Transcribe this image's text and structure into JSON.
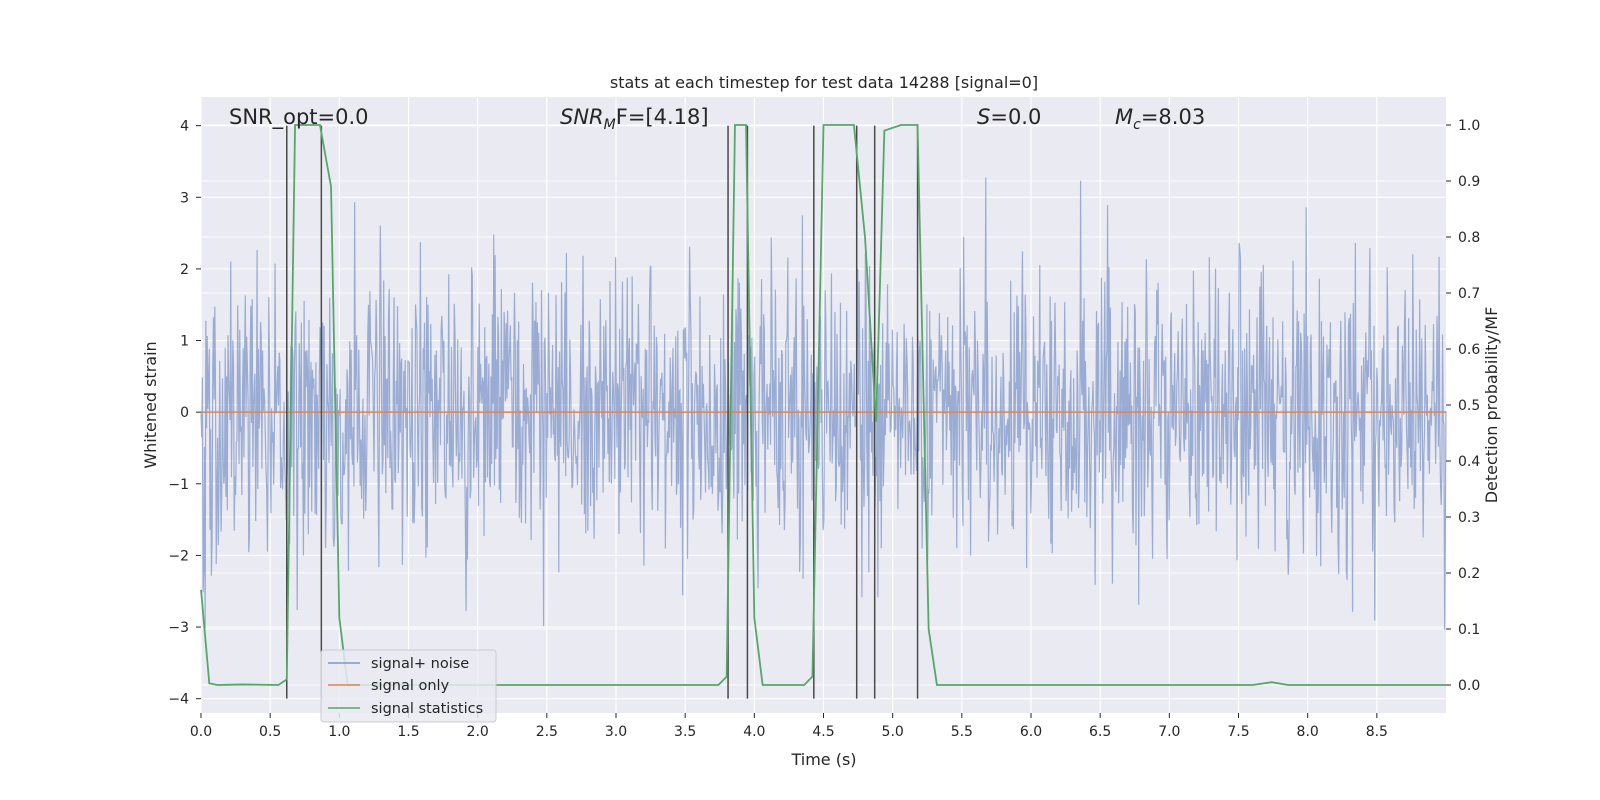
{
  "chart_data": {
    "type": "line",
    "title": "stats at each timestep for test data 14288 [signal=0]",
    "xlabel": "Time (s)",
    "ylabel": "Whitened strain",
    "y2label": "Detection probability/MF",
    "xlim": [
      0,
      9
    ],
    "ylim": [
      -4.2,
      4.4
    ],
    "y2lim": [
      -0.05,
      1.05
    ],
    "xticks": [
      0.0,
      0.5,
      1.0,
      1.5,
      2.0,
      2.5,
      3.0,
      3.5,
      4.0,
      4.5,
      5.0,
      5.5,
      6.0,
      6.5,
      7.0,
      7.5,
      8.0,
      8.5
    ],
    "yticks": [
      -4,
      -3,
      -2,
      -1,
      0,
      1,
      2,
      3,
      4
    ],
    "y2ticks": [
      0.0,
      0.1,
      0.2,
      0.3,
      0.4,
      0.5,
      0.6,
      0.7,
      0.8,
      0.9,
      1.0
    ],
    "grid": true,
    "legend_position": "lower-left",
    "annotations": {
      "snr_opt": "SNR_opt=0.0",
      "snr_mf_prefix": "SNR",
      "snr_mf_sub": "M",
      "snr_mf_suffix": "F=[4.18]",
      "s_prefix": "S",
      "s_suffix": "=0.0",
      "mc_prefix": "M",
      "mc_sub": "c",
      "mc_suffix": "=8.03"
    },
    "series": [
      {
        "name": "signal+ noise",
        "color": "#7f97c8",
        "axis": "left",
        "note": "Whitened strain noise trace, approx. Gaussian, spanning about -3.8 to 3.9",
        "seed": 14288,
        "sigma": 1.0,
        "x_start": 0.0,
        "x_end": 9.0,
        "n_points": 1800
      },
      {
        "name": "signal only",
        "color": "#dd8452",
        "axis": "left",
        "x": [
          0.0,
          9.0
        ],
        "y": [
          0.0,
          0.0
        ]
      },
      {
        "name": "signal statistics",
        "color": "#55a868",
        "axis": "right",
        "x": [
          0.0,
          0.06,
          0.12,
          0.3,
          0.56,
          0.62,
          0.68,
          0.86,
          0.94,
          1.0,
          1.06,
          3.74,
          3.8,
          3.86,
          3.94,
          4.0,
          4.06,
          4.36,
          4.42,
          4.5,
          4.72,
          4.8,
          4.88,
          4.94,
          5.06,
          5.18,
          5.26,
          5.32,
          7.6,
          7.74,
          7.86,
          9.0
        ],
        "y": [
          0.17,
          0.003,
          0.0,
          0.001,
          0.0,
          0.01,
          1.0,
          1.0,
          0.89,
          0.12,
          0.0,
          0.0,
          0.015,
          1.0,
          1.0,
          0.12,
          0.0,
          0.0,
          0.015,
          1.0,
          1.0,
          0.8,
          0.47,
          0.99,
          1.0,
          1.0,
          0.1,
          0.0,
          0.0,
          0.005,
          0.0,
          0.0
        ]
      }
    ],
    "vlines": {
      "color": "#4a4a4a",
      "x": [
        0.62,
        0.87,
        3.81,
        3.95,
        4.43,
        4.74,
        4.87,
        5.18
      ],
      "y_range": [
        -4.0,
        4.0
      ]
    }
  }
}
